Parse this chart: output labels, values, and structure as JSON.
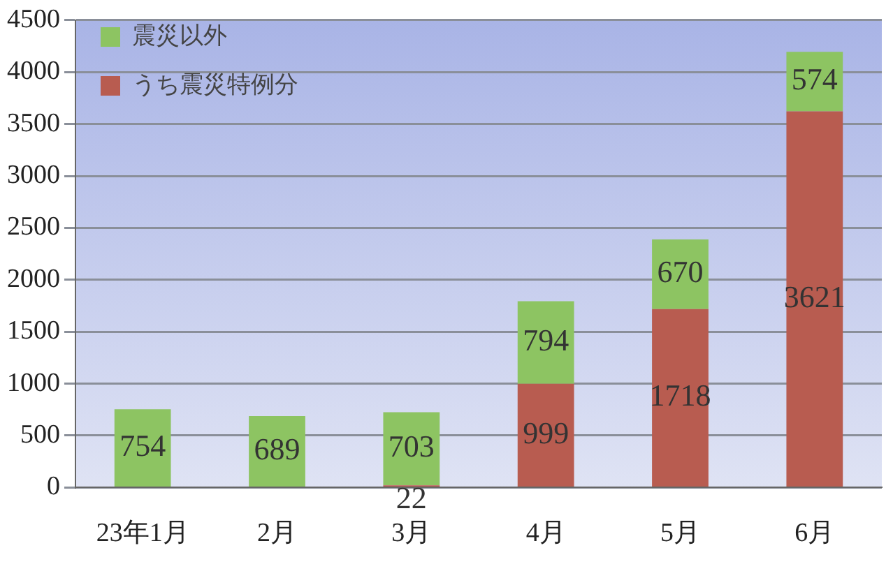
{
  "chart_data": {
    "type": "bar",
    "stacked": true,
    "categories": [
      "23年1月",
      "2月",
      "3月",
      "4月",
      "5月",
      "6月"
    ],
    "series": [
      {
        "name": "うち震災特例分",
        "color": "#b85c50",
        "values": [
          0,
          0,
          22,
          999,
          1718,
          3621
        ],
        "value_labels": [
          null,
          null,
          "22",
          "999",
          "1718",
          "3621"
        ]
      },
      {
        "name": "震災以外",
        "color": "#8dc462",
        "values": [
          754,
          689,
          703,
          794,
          670,
          574
        ],
        "value_labels": [
          "754",
          "689",
          "703",
          "794",
          "670",
          "574"
        ]
      }
    ],
    "ylim": [
      0,
      4500
    ],
    "yticks": [
      0,
      500,
      1000,
      1500,
      2000,
      2500,
      3000,
      3500,
      4000,
      4500
    ],
    "grid": "y",
    "legend": "top left"
  }
}
